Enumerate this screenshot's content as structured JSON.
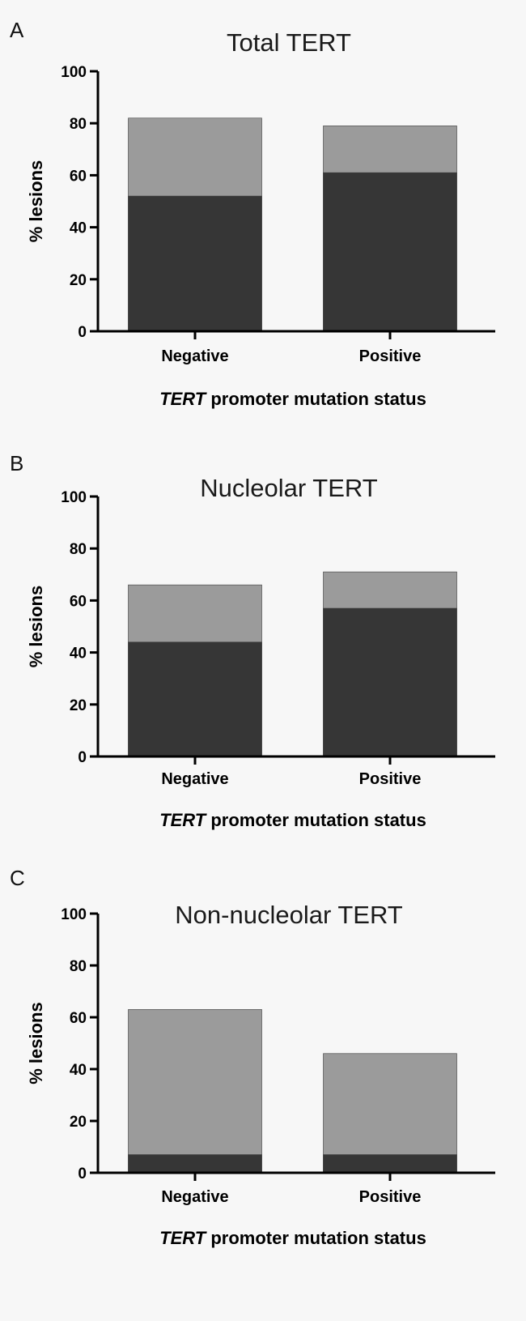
{
  "figure": {
    "panels": [
      {
        "letter": "A"
      },
      {
        "letter": "B"
      },
      {
        "letter": "C"
      }
    ]
  },
  "chart_data": [
    {
      "type": "bar",
      "stacked": false,
      "title": "Total TERT",
      "categories": [
        "Negative",
        "Positive"
      ],
      "xlabel_italic": "TERT",
      "xlabel_rest": " promoter mutation status",
      "ylabel": "% lesions",
      "ylim": [
        0,
        100
      ],
      "yticks": [
        0,
        20,
        40,
        60,
        80,
        100
      ],
      "series": [
        {
          "name": "light",
          "color": "#9b9b9b",
          "values": [
            82,
            79
          ]
        },
        {
          "name": "dark",
          "color": "#363636",
          "values": [
            52,
            61
          ]
        }
      ]
    },
    {
      "type": "bar",
      "stacked": false,
      "title": "Nucleolar TERT",
      "categories": [
        "Negative",
        "Positive"
      ],
      "xlabel_italic": "TERT",
      "xlabel_rest": " promoter mutation status",
      "ylabel": "% lesions",
      "ylim": [
        0,
        100
      ],
      "yticks": [
        0,
        20,
        40,
        60,
        80,
        100
      ],
      "series": [
        {
          "name": "light",
          "color": "#9b9b9b",
          "values": [
            66,
            71
          ]
        },
        {
          "name": "dark",
          "color": "#363636",
          "values": [
            44,
            57
          ]
        }
      ]
    },
    {
      "type": "bar",
      "stacked": false,
      "title": "Non-nucleolar TERT",
      "categories": [
        "Negative",
        "Positive"
      ],
      "xlabel_italic": "TERT",
      "xlabel_rest": " promoter mutation status",
      "ylabel": "% lesions",
      "ylim": [
        0,
        100
      ],
      "yticks": [
        0,
        20,
        40,
        60,
        80,
        100
      ],
      "series": [
        {
          "name": "light",
          "color": "#9b9b9b",
          "values": [
            63,
            46
          ]
        },
        {
          "name": "dark",
          "color": "#363636",
          "values": [
            7,
            7
          ]
        }
      ]
    }
  ]
}
